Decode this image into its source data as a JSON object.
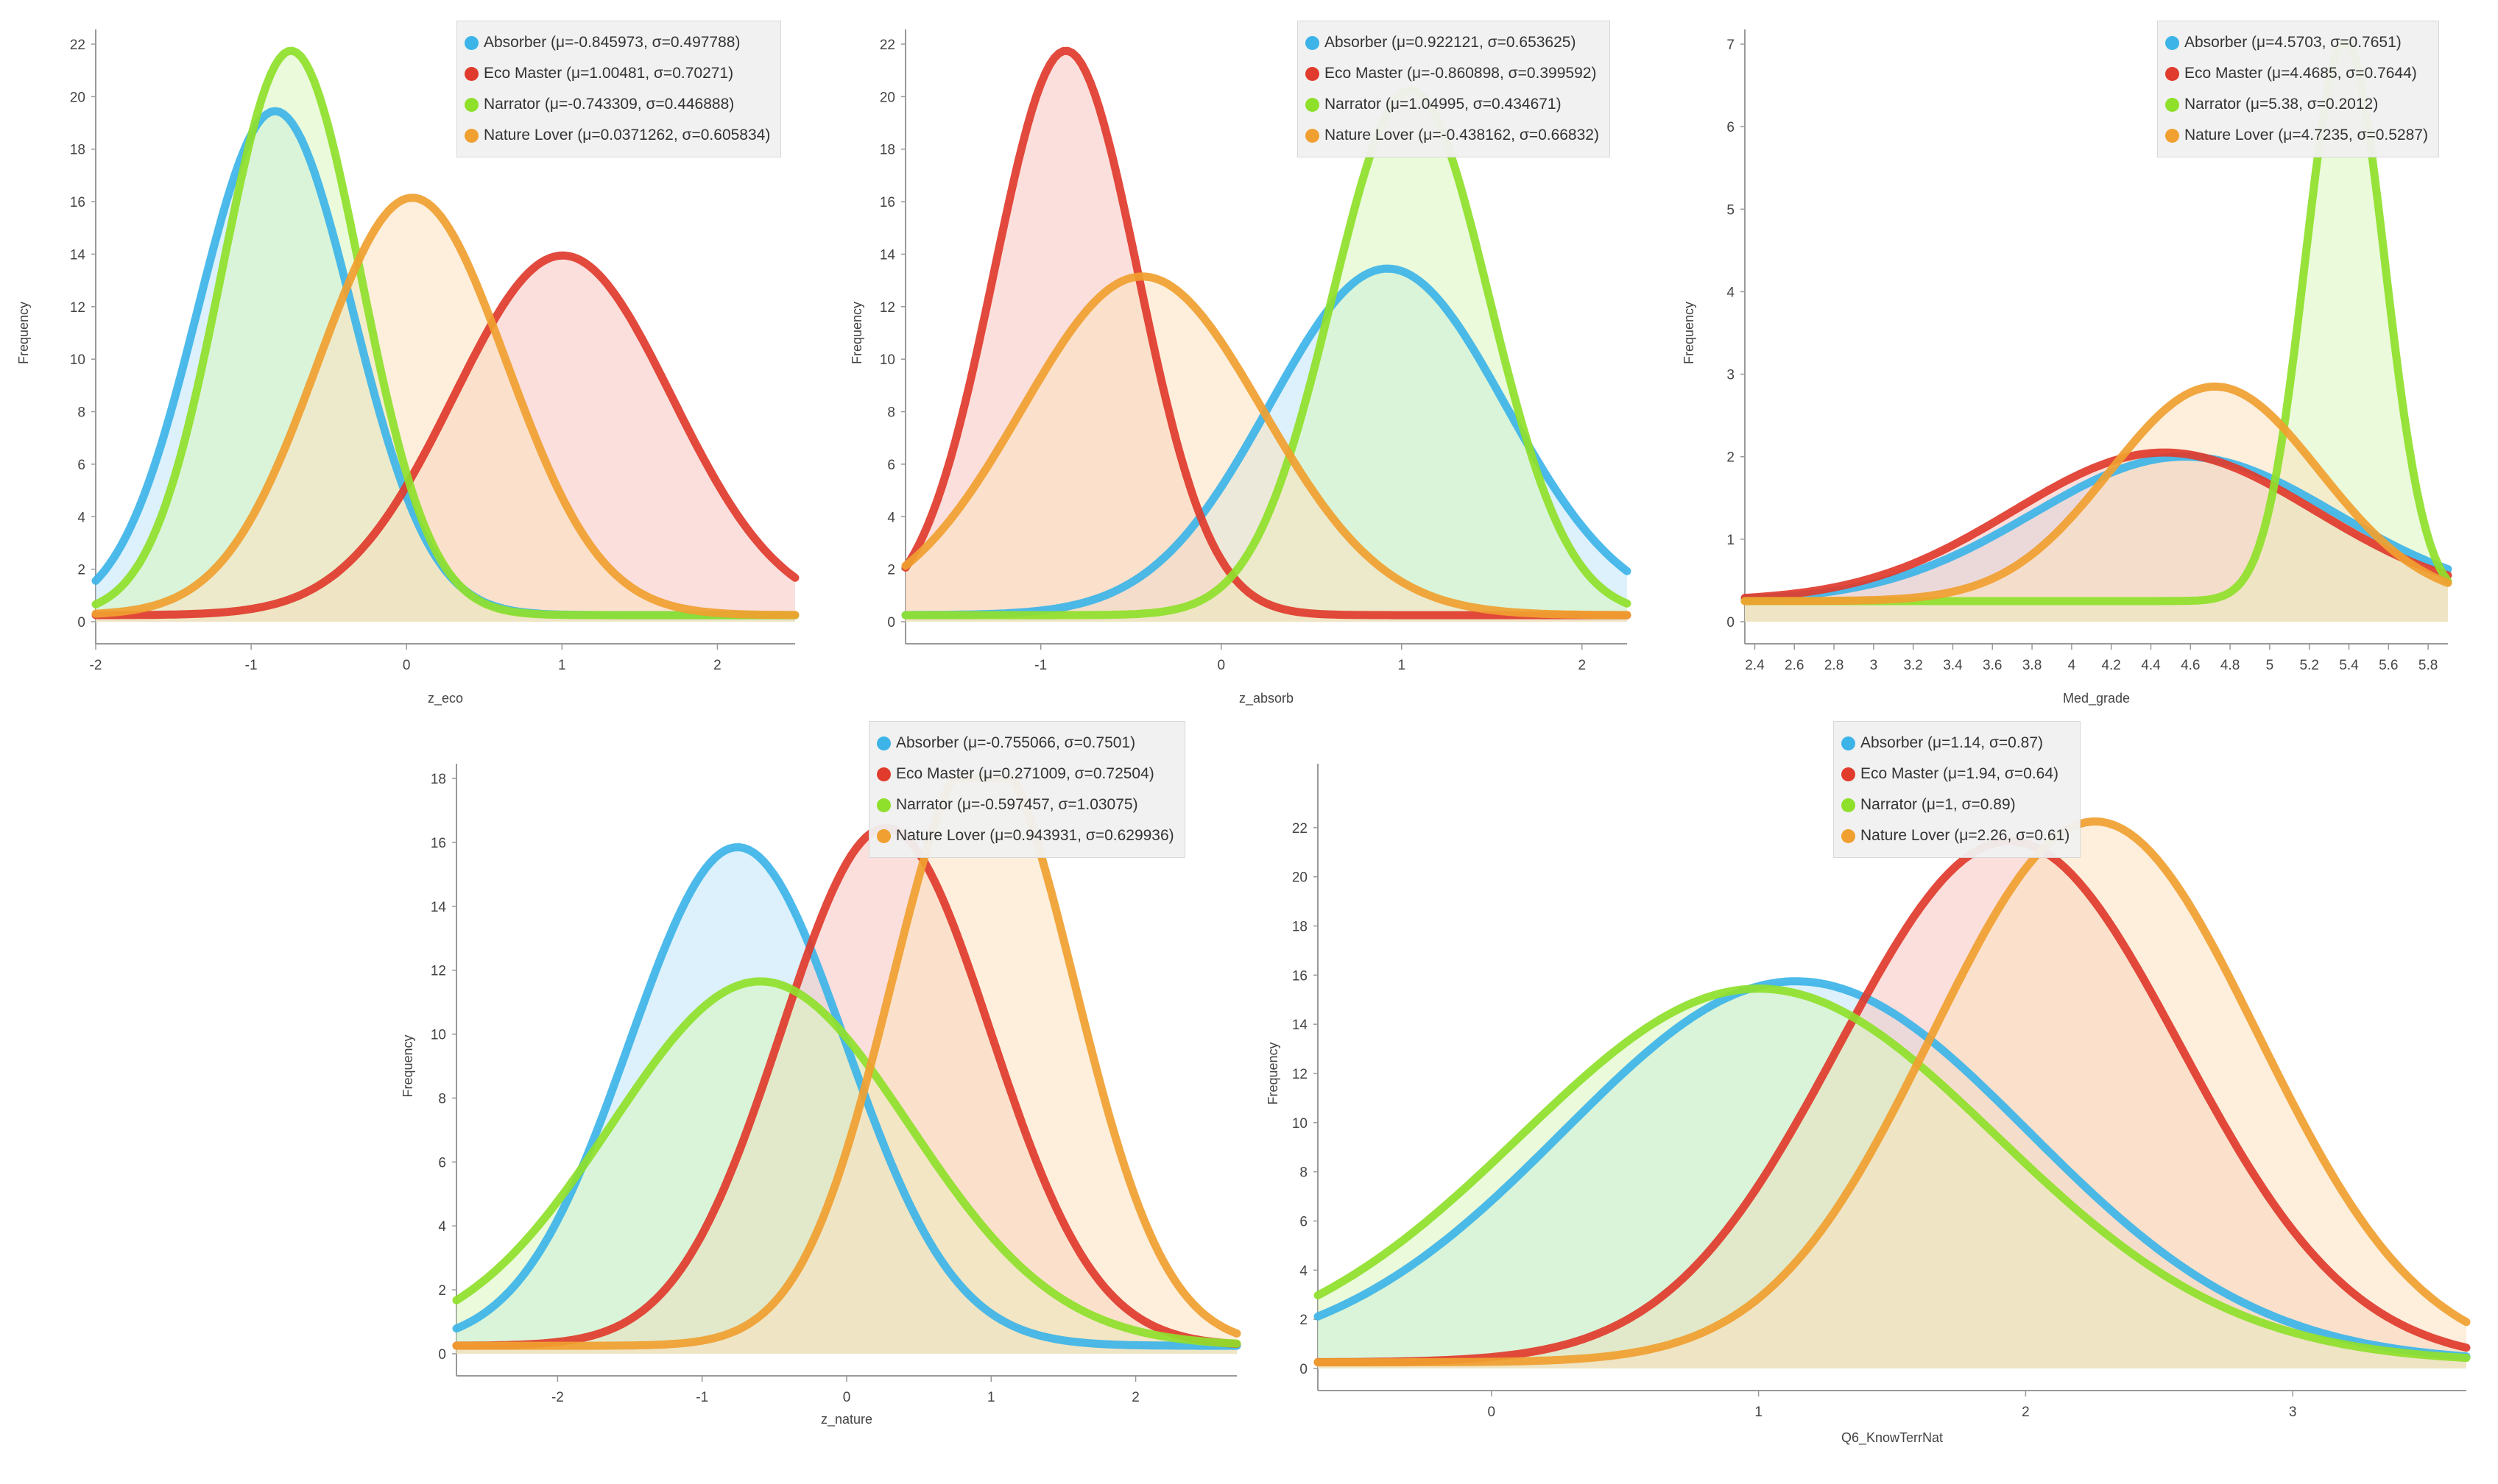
{
  "chart_data": [
    {
      "type": "area",
      "ylabel": "Frequency",
      "xlabel": "z_eco",
      "xlim": [
        -2,
        2.5
      ],
      "ylim": [
        0,
        22
      ],
      "xticks": [
        -2,
        -1,
        0,
        1,
        2
      ],
      "yticks": [
        0,
        2,
        4,
        6,
        8,
        10,
        12,
        14,
        16,
        18,
        20,
        22
      ],
      "series": [
        {
          "name": "Absorber",
          "label": "Absorber (μ=-0.845973, σ=0.497788)",
          "mu": -0.845973,
          "sigma": 0.497788,
          "scale": 19.2
        },
        {
          "name": "Eco Master",
          "label": "Eco Master (μ=1.00481, σ=0.70271)",
          "mu": 1.00481,
          "sigma": 0.70271,
          "scale": 13.7
        },
        {
          "name": "Narrator",
          "label": "Narrator (μ=-0.743309, σ=0.446888)",
          "mu": -0.743309,
          "sigma": 0.446888,
          "scale": 21.5
        },
        {
          "name": "Nature Lover",
          "label": "Nature Lover (μ=0.0371262, σ=0.605834)",
          "mu": 0.0371262,
          "sigma": 0.605834,
          "scale": 15.9
        }
      ]
    },
    {
      "type": "area",
      "ylabel": "Frequency",
      "xlabel": "z_absorb",
      "xlim": [
        -1.75,
        2.25
      ],
      "ylim": [
        0,
        22
      ],
      "xticks": [
        -1,
        0,
        1,
        2
      ],
      "yticks": [
        0,
        2,
        4,
        6,
        8,
        10,
        12,
        14,
        16,
        18,
        20,
        22
      ],
      "series": [
        {
          "name": "Absorber",
          "label": "Absorber (μ=0.922121, σ=0.653625)",
          "mu": 0.922121,
          "sigma": 0.653625,
          "scale": 13.2
        },
        {
          "name": "Eco Master",
          "label": "Eco Master (μ=-0.860898, σ=0.399592)",
          "mu": -0.860898,
          "sigma": 0.399592,
          "scale": 21.5
        },
        {
          "name": "Narrator",
          "label": "Narrator (μ=1.04995, σ=0.434671)",
          "mu": 1.04995,
          "sigma": 0.434671,
          "scale": 20.0
        },
        {
          "name": "Nature Lover",
          "label": "Nature Lover (μ=-0.438162, σ=0.66832)",
          "mu": -0.438162,
          "sigma": 0.66832,
          "scale": 12.9
        }
      ]
    },
    {
      "type": "area",
      "ylabel": "Frequency",
      "xlabel": "Med_grade",
      "xlim": [
        2.35,
        5.9
      ],
      "ylim": [
        0,
        7
      ],
      "xticks": [
        2.4,
        2.6,
        2.8,
        3,
        3.2,
        3.4,
        3.6,
        3.8,
        4,
        4.2,
        4.4,
        4.6,
        4.8,
        5,
        5.2,
        5.4,
        5.6,
        5.8
      ],
      "yticks": [
        0,
        1,
        2,
        3,
        4,
        5,
        6,
        7
      ],
      "series": [
        {
          "name": "Absorber",
          "label": "Absorber (μ=4.5703, σ=0.7651)",
          "mu": 4.5703,
          "sigma": 0.7651,
          "scale": 1.75
        },
        {
          "name": "Eco Master",
          "label": "Eco Master (μ=4.4685, σ=0.7644)",
          "mu": 4.4685,
          "sigma": 0.7644,
          "scale": 1.8
        },
        {
          "name": "Narrator",
          "label": "Narrator (μ=5.38, σ=0.2012)",
          "mu": 5.38,
          "sigma": 0.2012,
          "scale": 6.8
        },
        {
          "name": "Nature Lover",
          "label": "Nature Lover (μ=4.7235, σ=0.5287)",
          "mu": 4.7235,
          "sigma": 0.5287,
          "scale": 2.6
        }
      ]
    },
    {
      "type": "area",
      "ylabel": "Frequency",
      "xlabel": "z_nature",
      "xlim": [
        -2.7,
        2.7
      ],
      "ylim": [
        0,
        18
      ],
      "xticks": [
        -2,
        -1,
        0,
        1,
        2
      ],
      "yticks": [
        0,
        2,
        4,
        6,
        8,
        10,
        12,
        14,
        16,
        18
      ],
      "series": [
        {
          "name": "Absorber",
          "label": "Absorber (μ=-0.755066, σ=0.7501)",
          "mu": -0.755066,
          "sigma": 0.7501,
          "scale": 15.6
        },
        {
          "name": "Eco Master",
          "label": "Eco Master (μ=0.271009, σ=0.72504)",
          "mu": 0.271009,
          "sigma": 0.72504,
          "scale": 16.2
        },
        {
          "name": "Narrator",
          "label": "Narrator (μ=-0.597457, σ=1.03075)",
          "mu": -0.597457,
          "sigma": 1.03075,
          "scale": 11.4
        },
        {
          "name": "Nature Lover",
          "label": "Nature Lover (μ=0.943931, σ=0.629936)",
          "mu": 0.943931,
          "sigma": 0.629936,
          "scale": 18.8
        }
      ]
    },
    {
      "type": "area",
      "ylabel": "Frequency",
      "xlabel": "Q6_KnowTerrNat",
      "xlim": [
        -0.65,
        3.65
      ],
      "ylim": [
        0,
        24
      ],
      "xticks": [
        0,
        1,
        2,
        3
      ],
      "yticks": [
        0,
        2,
        4,
        6,
        8,
        10,
        12,
        14,
        16,
        18,
        20,
        22
      ],
      "series": [
        {
          "name": "Absorber",
          "label": "Absorber (μ=1.14, σ=0.87)",
          "mu": 1.14,
          "sigma": 0.87,
          "scale": 15.5
        },
        {
          "name": "Eco Master",
          "label": "Eco Master (μ=1.94, σ=0.64)",
          "mu": 1.94,
          "sigma": 0.64,
          "scale": 21.2
        },
        {
          "name": "Narrator",
          "label": "Narrator (μ=1, σ=0.89)",
          "mu": 1,
          "sigma": 0.89,
          "scale": 15.2
        },
        {
          "name": "Nature Lover",
          "label": "Nature Lover (μ=2.26, σ=0.61)",
          "mu": 2.26,
          "sigma": 0.61,
          "scale": 22.0
        }
      ]
    }
  ],
  "colors": {
    "Absorber": {
      "line": "#3db4e8",
      "fill": "#bfe5f7"
    },
    "Eco Master": {
      "line": "#e03b2c",
      "fill": "#f8c5c0"
    },
    "Narrator": {
      "line": "#8fe02b",
      "fill": "#d8f5bd"
    },
    "Nature Lover": {
      "line": "#f0a030",
      "fill": "#fbe1bf"
    }
  }
}
